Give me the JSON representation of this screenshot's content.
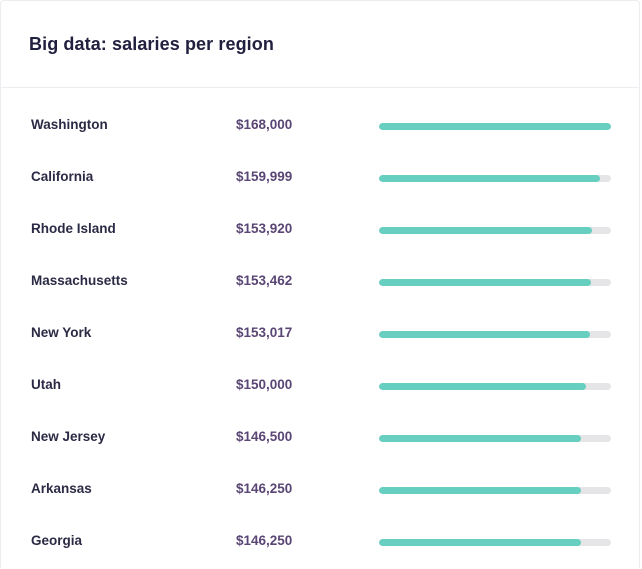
{
  "card": {
    "title": "Big data: salaries per region"
  },
  "colors": {
    "bar_fill": "#66cfbf",
    "bar_track": "#e5e5e8",
    "salary_text": "#5a4674",
    "region_text": "#2b2a45"
  },
  "rows": [
    {
      "region": "Washington",
      "salary": "$168,000",
      "value": 168000,
      "fill_fraction": 1.0
    },
    {
      "region": "California",
      "salary": "$159,999",
      "value": 159999,
      "fill_fraction": 0.952
    },
    {
      "region": "Rhode Island",
      "salary": "$153,920",
      "value": 153920,
      "fill_fraction": 0.916
    },
    {
      "region": "Massachusetts",
      "salary": "$153,462",
      "value": 153462,
      "fill_fraction": 0.913
    },
    {
      "region": "New York",
      "salary": "$153,017",
      "value": 153017,
      "fill_fraction": 0.911
    },
    {
      "region": "Utah",
      "salary": "$150,000",
      "value": 150000,
      "fill_fraction": 0.893
    },
    {
      "region": "New Jersey",
      "salary": "$146,500",
      "value": 146500,
      "fill_fraction": 0.872
    },
    {
      "region": "Arkansas",
      "salary": "$146,250",
      "value": 146250,
      "fill_fraction": 0.871
    },
    {
      "region": "Georgia",
      "salary": "$146,250",
      "value": 146250,
      "fill_fraction": 0.871
    }
  ]
}
